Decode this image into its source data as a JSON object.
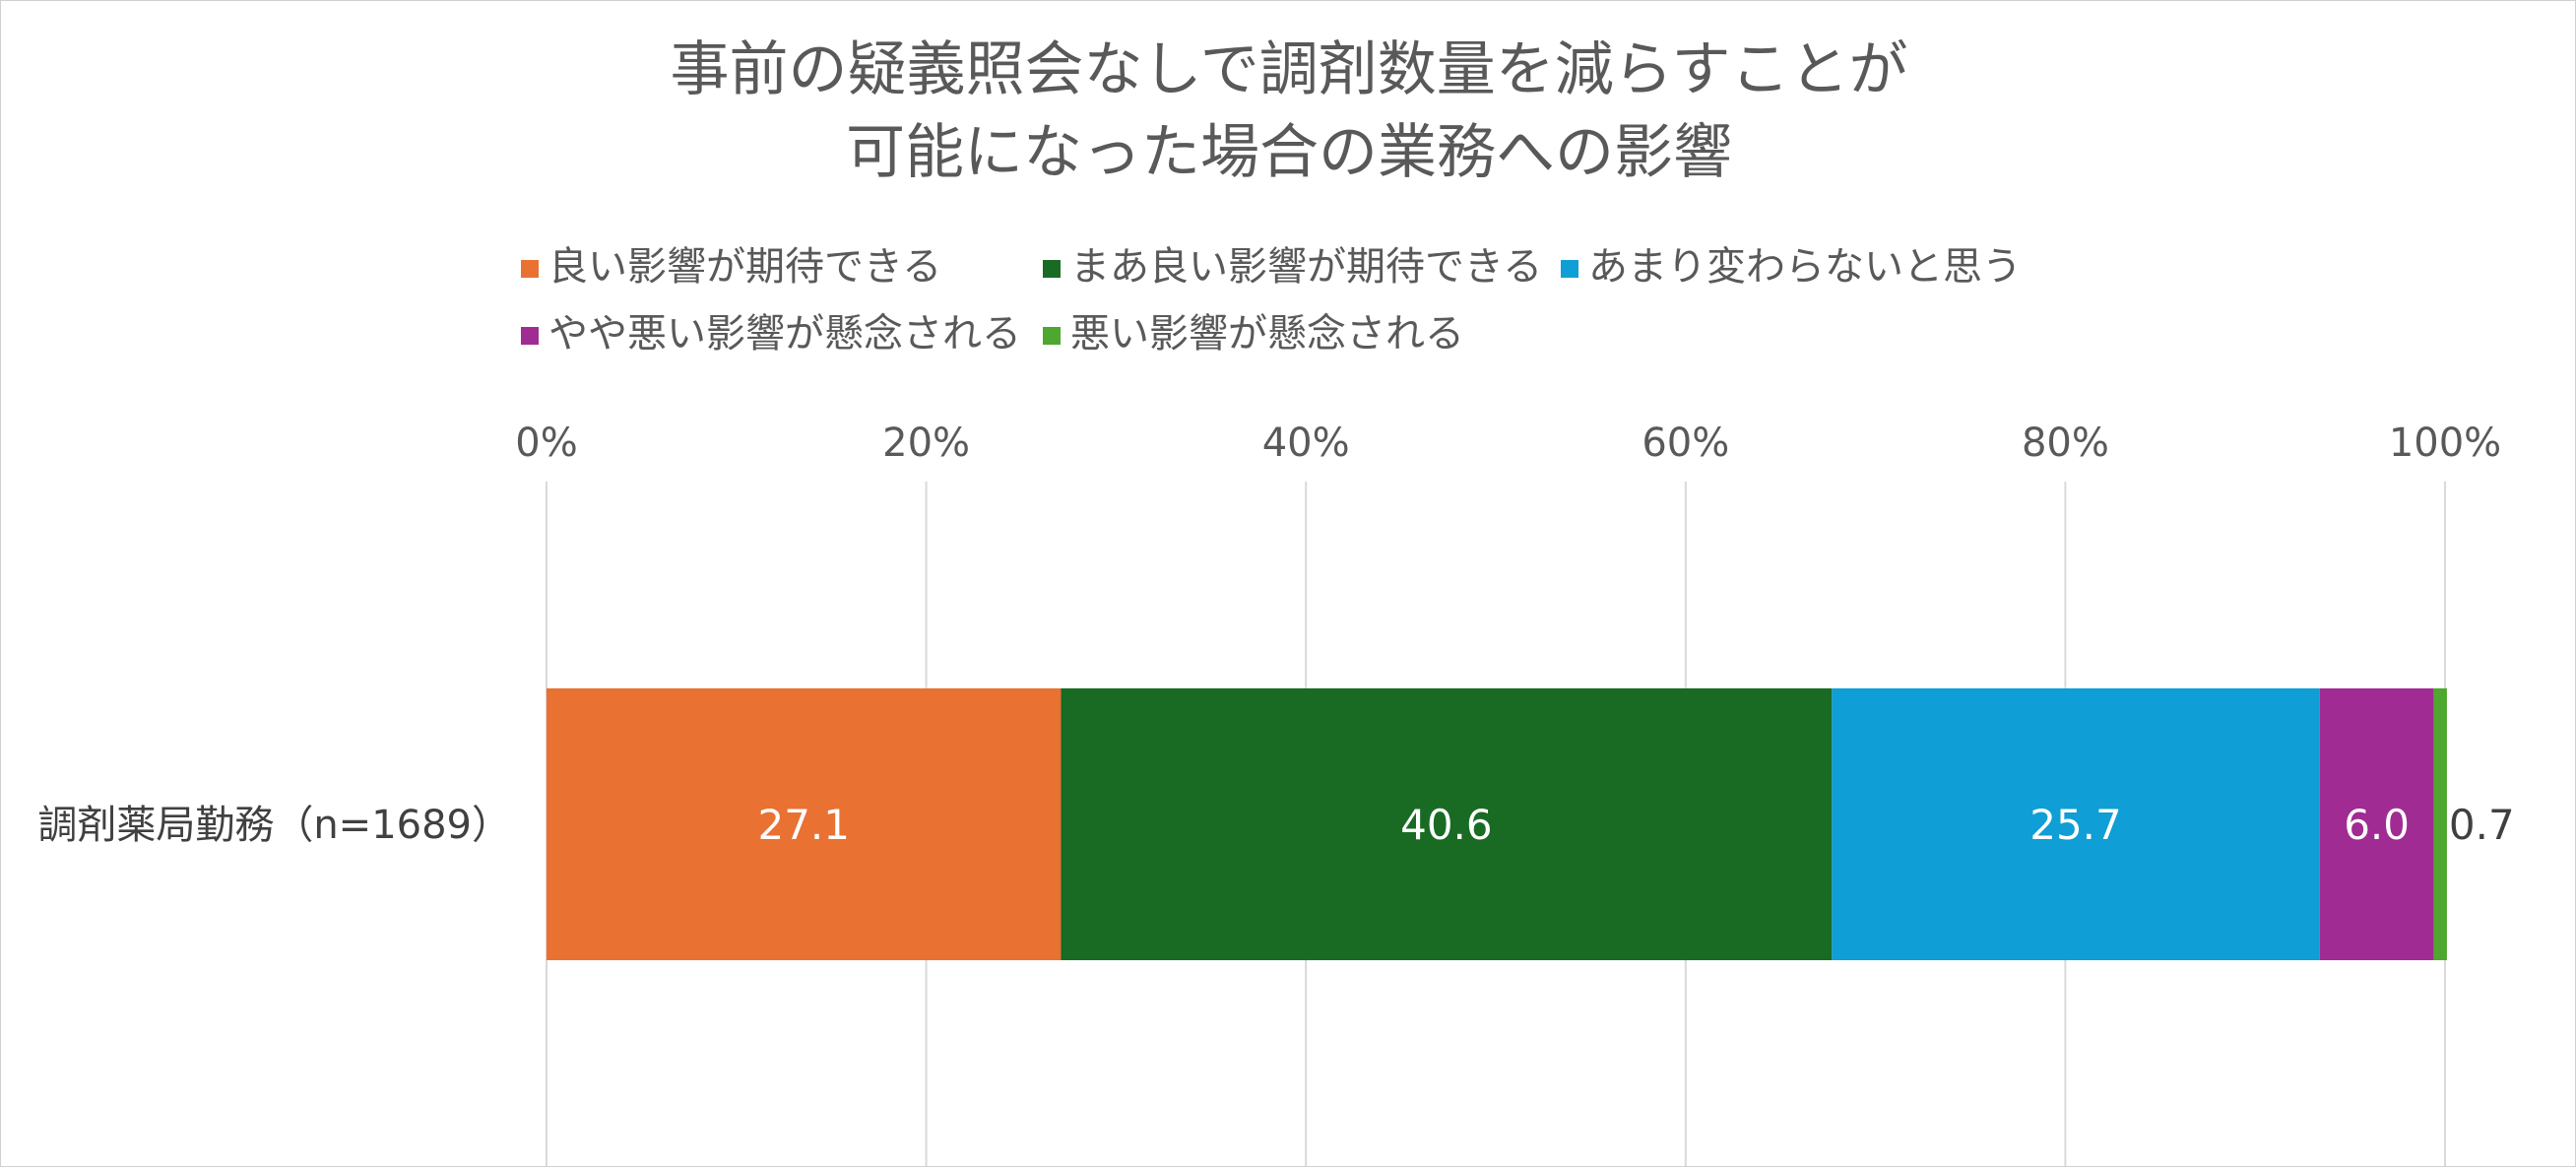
{
  "chart_data": {
    "type": "bar",
    "orientation": "horizontal",
    "stacked": "percent",
    "title_lines": [
      "事前の疑義照会なしで調剤数量を減らすことが",
      "可能になった場合の業務への影響"
    ],
    "categories": [
      "調剤薬局勤務（n=1689）"
    ],
    "series": [
      {
        "name": "良い影響が期待できる",
        "values": [
          27.1
        ],
        "color": "#E97132",
        "label_color": "#ffffff"
      },
      {
        "name": "まあ良い影響が期待できる",
        "values": [
          40.6
        ],
        "color": "#196B24",
        "label_color": "#ffffff"
      },
      {
        "name": "あまり変わらないと思う",
        "values": [
          25.7
        ],
        "color": "#0F9ED5",
        "label_color": "#ffffff"
      },
      {
        "name": "やや悪い影響が懸念される",
        "values": [
          6.0
        ],
        "color": "#A02B93",
        "label_color": "#ffffff"
      },
      {
        "name": "悪い影響が懸念される",
        "values": [
          0.7
        ],
        "color": "#4EA72E",
        "label_color": "#404040"
      }
    ],
    "data_labels": [
      "27.1",
      "40.6",
      "25.7",
      "6.0",
      "0.7"
    ],
    "x_axis": {
      "position": "top",
      "range": [
        0,
        100
      ],
      "ticks": [
        "0%",
        "20%",
        "40%",
        "60%",
        "80%",
        "100%"
      ]
    },
    "grid": true,
    "legend_position": "top"
  }
}
